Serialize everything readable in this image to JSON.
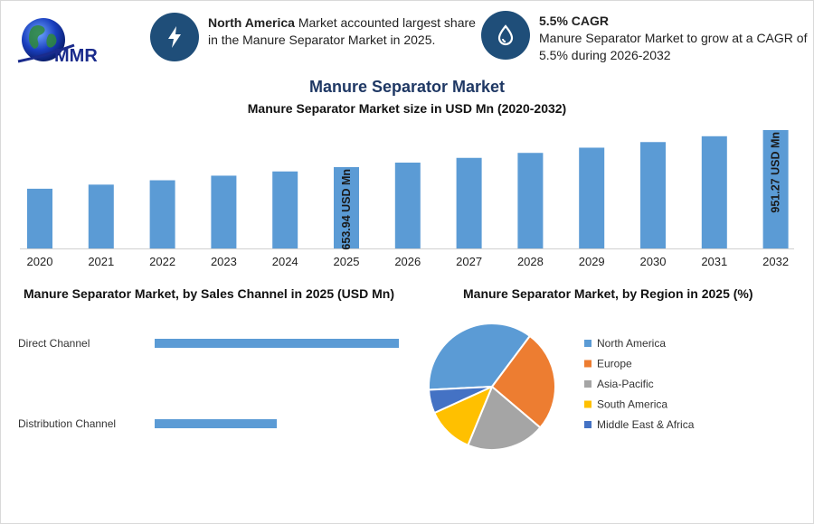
{
  "brand": {
    "logo_text": "MMR"
  },
  "header": {
    "info1": {
      "bold": "North America",
      "text": " Market accounted largest share in the Manure Separator Market in 2025."
    },
    "info2": {
      "bold": "5.5% CAGR",
      "text": "Manure Separator Market to grow at a CAGR of 5.5% during 2026-2032"
    },
    "icon_color": "#1f4e79"
  },
  "chart_data": [
    {
      "type": "bar",
      "title": "Manure Separator Market",
      "subtitle": "Manure Separator Market size in USD Mn (2020-2032)",
      "categories": [
        "2020",
        "2021",
        "2022",
        "2023",
        "2024",
        "2025",
        "2026",
        "2027",
        "2028",
        "2029",
        "2030",
        "2031",
        "2032"
      ],
      "values": [
        480,
        513,
        548,
        585,
        619,
        653.94,
        690,
        728,
        768,
        810,
        855,
        902,
        951.27
      ],
      "data_labels": {
        "2025": "653.94 USD Mn",
        "2032": "951.27 USD Mn"
      },
      "ylim": [
        0,
        1000
      ],
      "color": "#5b9bd5",
      "xlabel": "",
      "ylabel": ""
    },
    {
      "type": "bar",
      "orientation": "horizontal",
      "title": "Manure Separator Market, by Sales Channel in 2025 (USD Mn)",
      "categories": [
        "Direct Channel",
        "Distribution Channel"
      ],
      "values": [
        430,
        215
      ],
      "xlim": [
        0,
        430
      ],
      "color": "#5b9bd5"
    },
    {
      "type": "pie",
      "title": "Manure Separator Market, by Region in 2025 (%)",
      "labels": [
        "North America",
        "Europe",
        "Asia-Pacific",
        "South America",
        "Middle East & Africa"
      ],
      "values": [
        36,
        26,
        20,
        12,
        6
      ],
      "colors": [
        "#5b9bd5",
        "#ed7d31",
        "#a5a5a5",
        "#ffc000",
        "#4472c4"
      ]
    }
  ]
}
